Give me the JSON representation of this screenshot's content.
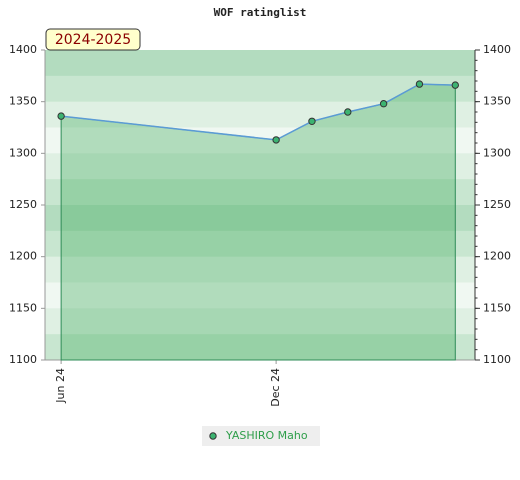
{
  "chart_data": {
    "type": "line",
    "title": "WOF ratinglist",
    "annotation": "2024-2025",
    "x": [
      "2024-06",
      "2024-12",
      "2025-01",
      "2025-02",
      "2025-03",
      "2025-04",
      "2025-05"
    ],
    "series": [
      {
        "name": "YASHIRO Maho",
        "color": "#5b9bd5",
        "values": [
          1336,
          1313,
          1331,
          1340,
          1348,
          1367,
          1366
        ]
      }
    ],
    "xticks": [
      {
        "value": "2024-06",
        "label": "Jun 24"
      },
      {
        "value": "2024-12",
        "label": "Dec 24"
      }
    ],
    "ylim": [
      1100,
      1400
    ],
    "yticks": [
      1100,
      1150,
      1200,
      1250,
      1300,
      1350,
      1400
    ],
    "y2lim": [
      1100,
      1400
    ],
    "y2ticks": [
      1100,
      1150,
      1200,
      1250,
      1300,
      1350,
      1400
    ]
  }
}
